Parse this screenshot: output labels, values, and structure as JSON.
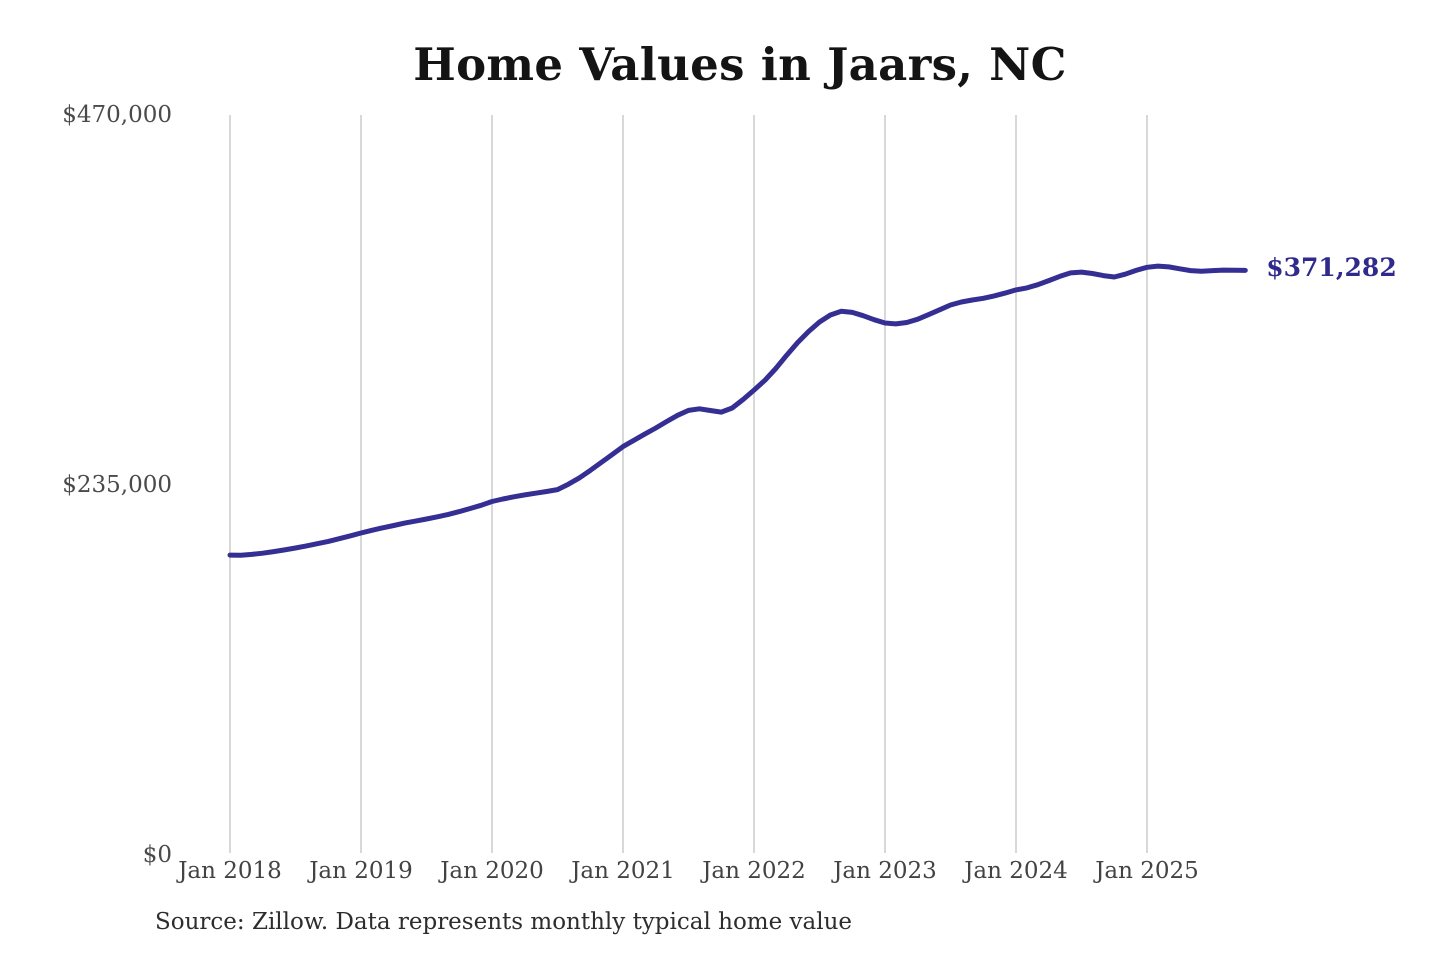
{
  "title": "Home Values in Jaars, NC",
  "source_note": "Source: Zillow. Data represents monthly typical home value",
  "colors": {
    "line": "#352f93",
    "grid": "#cbcbcb",
    "end_label": "#2f2a8c"
  },
  "chart_data": {
    "type": "line",
    "title": "Home Values in Jaars, NC",
    "x_start": "2018-01",
    "x_interval": "monthly",
    "x_tick_labels": [
      "Jan 2018",
      "Jan 2019",
      "Jan 2020",
      "Jan 2021",
      "Jan 2022",
      "Jan 2023",
      "Jan 2024",
      "Jan 2025"
    ],
    "y_ticks": [
      0,
      235000,
      470000
    ],
    "y_tick_labels": [
      "$0",
      "$235,000",
      "$470,000"
    ],
    "ylim": [
      0,
      470000
    ],
    "grid": "vertical-only",
    "legend": "none",
    "last_value": 371282,
    "last_value_label": "$371,282",
    "series": [
      {
        "name": "Typical home value (USD)",
        "values": [
          190500,
          190400,
          190900,
          191700,
          192700,
          193800,
          195000,
          196300,
          197700,
          199200,
          200900,
          202700,
          204500,
          206200,
          207800,
          209300,
          210800,
          212100,
          213400,
          214800,
          216300,
          218100,
          220100,
          222100,
          224500,
          226100,
          227500,
          228700,
          229800,
          230900,
          232100,
          235500,
          239500,
          244300,
          249300,
          254300,
          259400,
          263400,
          267300,
          271200,
          275300,
          279300,
          282400,
          283400,
          282300,
          281300,
          283900,
          289300,
          295300,
          301500,
          309000,
          317500,
          325500,
          332500,
          338500,
          343000,
          345300,
          344600,
          342500,
          340000,
          337900,
          337300,
          338200,
          340300,
          343200,
          346300,
          349300,
          351200,
          352500,
          353600,
          355100,
          356900,
          358900,
          360200,
          362200,
          364800,
          367500,
          369700,
          370200,
          369300,
          368000,
          367100,
          368900,
          371300,
          373300,
          374000,
          373500,
          372300,
          371200,
          370800,
          371200,
          371500,
          371350,
          371282
        ]
      }
    ]
  }
}
